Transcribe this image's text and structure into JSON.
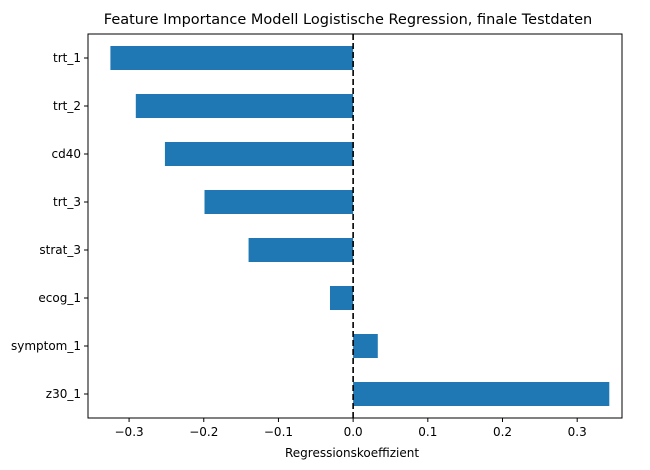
{
  "chart_data": {
    "type": "bar",
    "orientation": "horizontal",
    "title": "Feature Importance Modell Logistische Regression, finale Testdaten",
    "xlabel": "Regressionskoeffizient",
    "ylabel": "",
    "categories": [
      "trt_1",
      "trt_2",
      "cd40",
      "trt_3",
      "strat_3",
      "ecog_1",
      "symptom_1",
      "z30_1"
    ],
    "values": [
      -0.325,
      -0.291,
      -0.252,
      -0.199,
      -0.14,
      -0.031,
      0.033,
      0.343
    ],
    "xlim": [
      -0.355,
      0.36
    ],
    "xticks": [
      -0.3,
      -0.2,
      -0.1,
      0.0,
      0.1,
      0.2,
      0.3
    ],
    "xtick_labels": [
      "−0.3",
      "−0.2",
      "−0.1",
      "0.0",
      "0.1",
      "0.2",
      "0.3"
    ],
    "reference_line": {
      "x": 0.0,
      "style": "dashed",
      "color": "#000000"
    },
    "grid": false,
    "bar_color": "#1f77b4"
  }
}
